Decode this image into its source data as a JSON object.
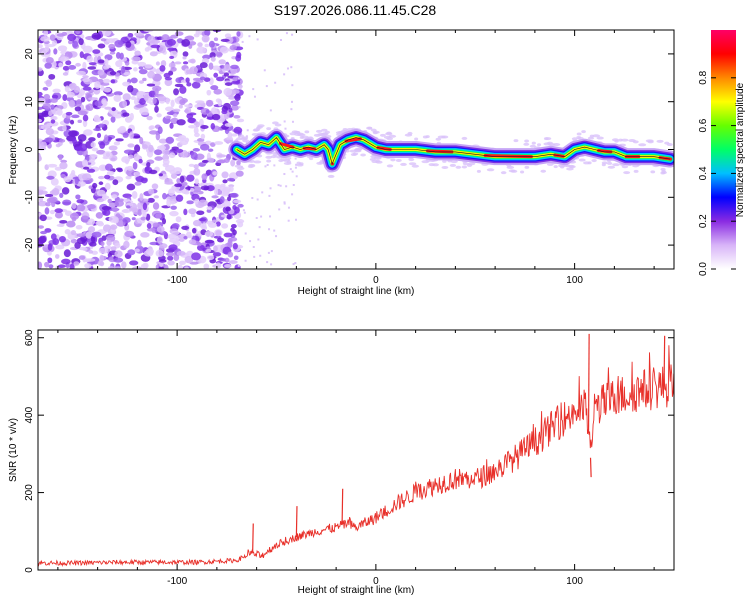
{
  "title": "S197.2026.086.11.45.C28",
  "chart_data": [
    {
      "type": "heatmap",
      "name": "spectrogram",
      "xlabel": "Height of straight line (km)",
      "ylabel": "Frequency (Hz)",
      "xlim": [
        -170,
        150
      ],
      "ylim": [
        -25,
        25
      ],
      "xticks": [
        -100,
        0,
        100
      ],
      "xtick_labels": [
        "-100",
        "0",
        "100"
      ],
      "yticks": [
        -20,
        -10,
        0,
        10,
        20
      ],
      "ytick_labels": [
        "-20",
        "-10",
        "0",
        "10",
        "20"
      ],
      "noise_region_x": [
        -170,
        -70
      ],
      "ridge": {
        "x": [
          -70,
          -66,
          -62,
          -58,
          -54,
          -50,
          -46,
          -42,
          -38,
          -34,
          -30,
          -26,
          -24,
          -22,
          -18,
          -14,
          -10,
          -6,
          -2,
          0,
          5,
          10,
          20,
          30,
          40,
          50,
          60,
          70,
          80,
          88,
          95,
          100,
          105,
          110,
          115,
          120,
          126,
          132,
          140,
          148
        ],
        "y": [
          0,
          -1,
          0,
          1.5,
          1,
          2.5,
          0,
          0.5,
          0,
          0.5,
          0,
          1,
          0,
          -3,
          1,
          2,
          2.5,
          2,
          1,
          0.5,
          0,
          0,
          0,
          -0.5,
          -0.5,
          -1,
          -1.5,
          -1.5,
          -1.5,
          -1,
          -1.5,
          0,
          0.5,
          0,
          -0.5,
          -0.5,
          -1.5,
          -1.5,
          -1.5,
          -2
        ],
        "peak_segments": [
          [
            -48,
            -42
          ],
          [
            -36,
            -31
          ],
          [
            -22,
            -22
          ],
          [
            -15,
            -8
          ],
          [
            1,
            7
          ],
          [
            26,
            38
          ],
          [
            55,
            78
          ],
          [
            90,
            94
          ],
          [
            112,
            118
          ],
          [
            126,
            132
          ],
          [
            143,
            148
          ]
        ]
      },
      "colorbar": {
        "label": "Normalized spectral amplitude",
        "ticks": [
          0.0,
          0.2,
          0.4,
          0.6,
          0.8
        ],
        "tick_labels": [
          "0.0",
          "0.2",
          "0.4",
          "0.6",
          "0.8"
        ],
        "range": [
          0,
          1
        ],
        "colors": [
          "#ffffff",
          "#d8b4f8",
          "#8a2be2",
          "#0000ff",
          "#00bfff",
          "#00ff66",
          "#66ff00",
          "#ffff00",
          "#ff8800",
          "#ff0000",
          "#ff0066"
        ]
      }
    },
    {
      "type": "line",
      "name": "snr",
      "xlabel": "Height of straight line (km)",
      "ylabel": "SNR (10 * v/v)",
      "xlim": [
        -170,
        150
      ],
      "ylim": [
        0,
        620
      ],
      "xticks": [
        -100,
        0,
        100
      ],
      "xtick_labels": [
        "-100",
        "0",
        "100"
      ],
      "yticks": [
        0,
        200,
        400,
        600
      ],
      "ytick_labels": [
        "0",
        "200",
        "400",
        "600"
      ],
      "color": "#e8302a",
      "series": [
        {
          "name": "SNR",
          "x": [
            -170,
            -150,
            -130,
            -110,
            -90,
            -70,
            -62,
            -58,
            -50,
            -40,
            -30,
            -20,
            -15,
            -10,
            0,
            10,
            20,
            30,
            40,
            50,
            60,
            70,
            80,
            90,
            100,
            106,
            108,
            110,
            120,
            130,
            140,
            150
          ],
          "y": [
            18,
            18,
            20,
            20,
            20,
            25,
            45,
            35,
            65,
            85,
            100,
            110,
            120,
            110,
            135,
            170,
            200,
            220,
            235,
            235,
            255,
            290,
            330,
            375,
            410,
            420,
            290,
            420,
            445,
            460,
            470,
            480
          ],
          "spikes": [
            {
              "x": -62,
              "y": 120
            },
            {
              "x": -40,
              "y": 165
            },
            {
              "x": -17,
              "y": 210
            },
            {
              "x": 107,
              "y": 610
            },
            {
              "x": 108,
              "y": 240
            },
            {
              "x": 145,
              "y": 605
            }
          ]
        }
      ]
    }
  ]
}
